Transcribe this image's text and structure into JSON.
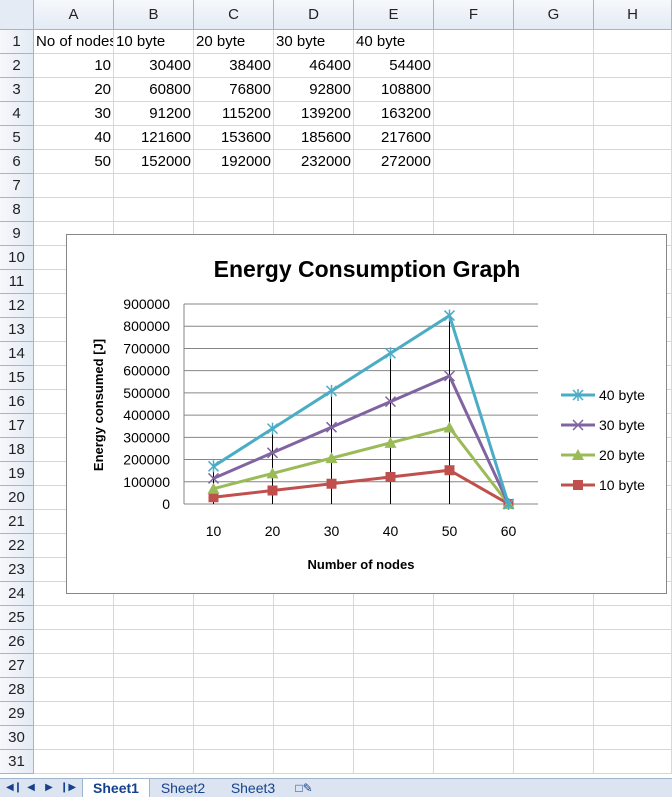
{
  "columns": [
    "A",
    "B",
    "C",
    "D",
    "E",
    "F",
    "G",
    "H"
  ],
  "rows": [
    "1",
    "2",
    "3",
    "4",
    "5",
    "6",
    "7",
    "8",
    "9",
    "10",
    "11",
    "12",
    "13",
    "14",
    "15",
    "16",
    "17",
    "18",
    "19",
    "20",
    "21",
    "22",
    "23",
    "24",
    "25",
    "26",
    "27",
    "28",
    "29",
    "30",
    "31"
  ],
  "table": {
    "headers": [
      "No of nodes",
      "10 byte",
      "20 byte",
      "30 byte",
      "40 byte"
    ],
    "rows": [
      [
        "10",
        "30400",
        "38400",
        "46400",
        "54400"
      ],
      [
        "20",
        "60800",
        "76800",
        "92800",
        "108800"
      ],
      [
        "30",
        "91200",
        "115200",
        "139200",
        "163200"
      ],
      [
        "40",
        "121600",
        "153600",
        "185600",
        "217600"
      ],
      [
        "50",
        "152000",
        "192000",
        "232000",
        "272000"
      ]
    ]
  },
  "chart_data": {
    "type": "line",
    "title": "Energy Consumption  Graph",
    "xlabel": "Number of nodes",
    "ylabel": "Energy consumed [J]",
    "categories": [
      "10",
      "20",
      "30",
      "40",
      "50",
      "60"
    ],
    "ylim": [
      0,
      900000
    ],
    "yticks": [
      "0",
      "100000",
      "200000",
      "300000",
      "400000",
      "500000",
      "600000",
      "700000",
      "800000",
      "900000"
    ],
    "grid": true,
    "stacked": true,
    "drop_lines": true,
    "legend_position": "right",
    "series": [
      {
        "name": "10 byte",
        "values": [
          30400,
          60800,
          91200,
          121600,
          152000,
          0
        ],
        "color": "#c0504d",
        "marker": "square"
      },
      {
        "name": "20 byte",
        "values": [
          38400,
          76800,
          115200,
          153600,
          192000,
          0
        ],
        "color": "#9bbb59",
        "marker": "triangle"
      },
      {
        "name": "30 byte",
        "values": [
          46400,
          92800,
          139200,
          185600,
          232000,
          0
        ],
        "color": "#8064a2",
        "marker": "x"
      },
      {
        "name": "40 byte",
        "values": [
          54400,
          108800,
          163200,
          217600,
          272000,
          0
        ],
        "color": "#4bacc6",
        "marker": "star"
      }
    ],
    "legend_order": [
      "40 byte",
      "30 byte",
      "20 byte",
      "10 byte"
    ]
  },
  "tabs": [
    "Sheet1",
    "Sheet2",
    "Sheet3"
  ],
  "active_tab": "Sheet1",
  "nav_icons": [
    "first-sheet-icon",
    "prev-sheet-icon",
    "next-sheet-icon",
    "last-sheet-icon"
  ]
}
